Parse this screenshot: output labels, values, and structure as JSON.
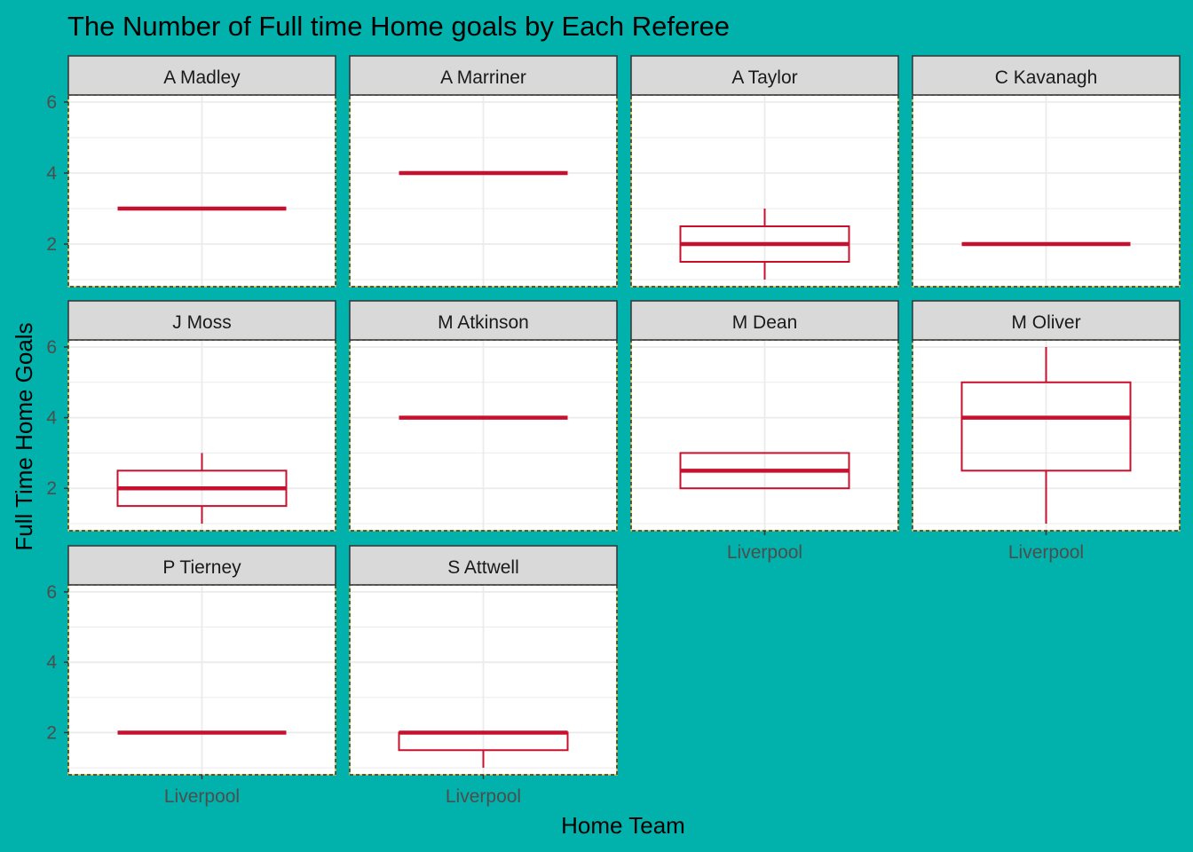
{
  "chart_data": {
    "type": "boxplot",
    "title": "The Number of Full time Home goals by Each Referee",
    "xlabel": "Home Team",
    "ylabel": "Full Time Home Goals",
    "category": "Liverpool",
    "ylim": [
      0.8,
      6.2
    ],
    "yticks": [
      2,
      4,
      6
    ],
    "grid": true,
    "legend": "none",
    "colors": {
      "background": "#00b2ab",
      "panel": "#ffffff",
      "strip": "#d9d9d9",
      "box": "#c8102e",
      "grid": "#ebebeb",
      "panel_border": "#d4c54a"
    },
    "panels": [
      {
        "referee": "A Madley",
        "min": 3,
        "q1": 3,
        "median": 3,
        "q3": 3,
        "max": 3
      },
      {
        "referee": "A Marriner",
        "min": 4,
        "q1": 4,
        "median": 4,
        "q3": 4,
        "max": 4
      },
      {
        "referee": "A Taylor",
        "min": 1,
        "q1": 1.5,
        "median": 2,
        "q3": 2.5,
        "max": 3
      },
      {
        "referee": "C Kavanagh",
        "min": 2,
        "q1": 2,
        "median": 2,
        "q3": 2,
        "max": 2
      },
      {
        "referee": "J Moss",
        "min": 1,
        "q1": 1.5,
        "median": 2,
        "q3": 2.5,
        "max": 3
      },
      {
        "referee": "M Atkinson",
        "min": 4,
        "q1": 4,
        "median": 4,
        "q3": 4,
        "max": 4
      },
      {
        "referee": "M Dean",
        "min": 2,
        "q1": 2,
        "median": 2.5,
        "q3": 3,
        "max": 3
      },
      {
        "referee": "M Oliver",
        "min": 1,
        "q1": 2.5,
        "median": 4,
        "q3": 5,
        "max": 6
      },
      {
        "referee": "P Tierney",
        "min": 2,
        "q1": 2,
        "median": 2,
        "q3": 2,
        "max": 2
      },
      {
        "referee": "S Attwell",
        "min": 1,
        "q1": 1.5,
        "median": 2,
        "q3": 2,
        "max": 2
      }
    ]
  }
}
